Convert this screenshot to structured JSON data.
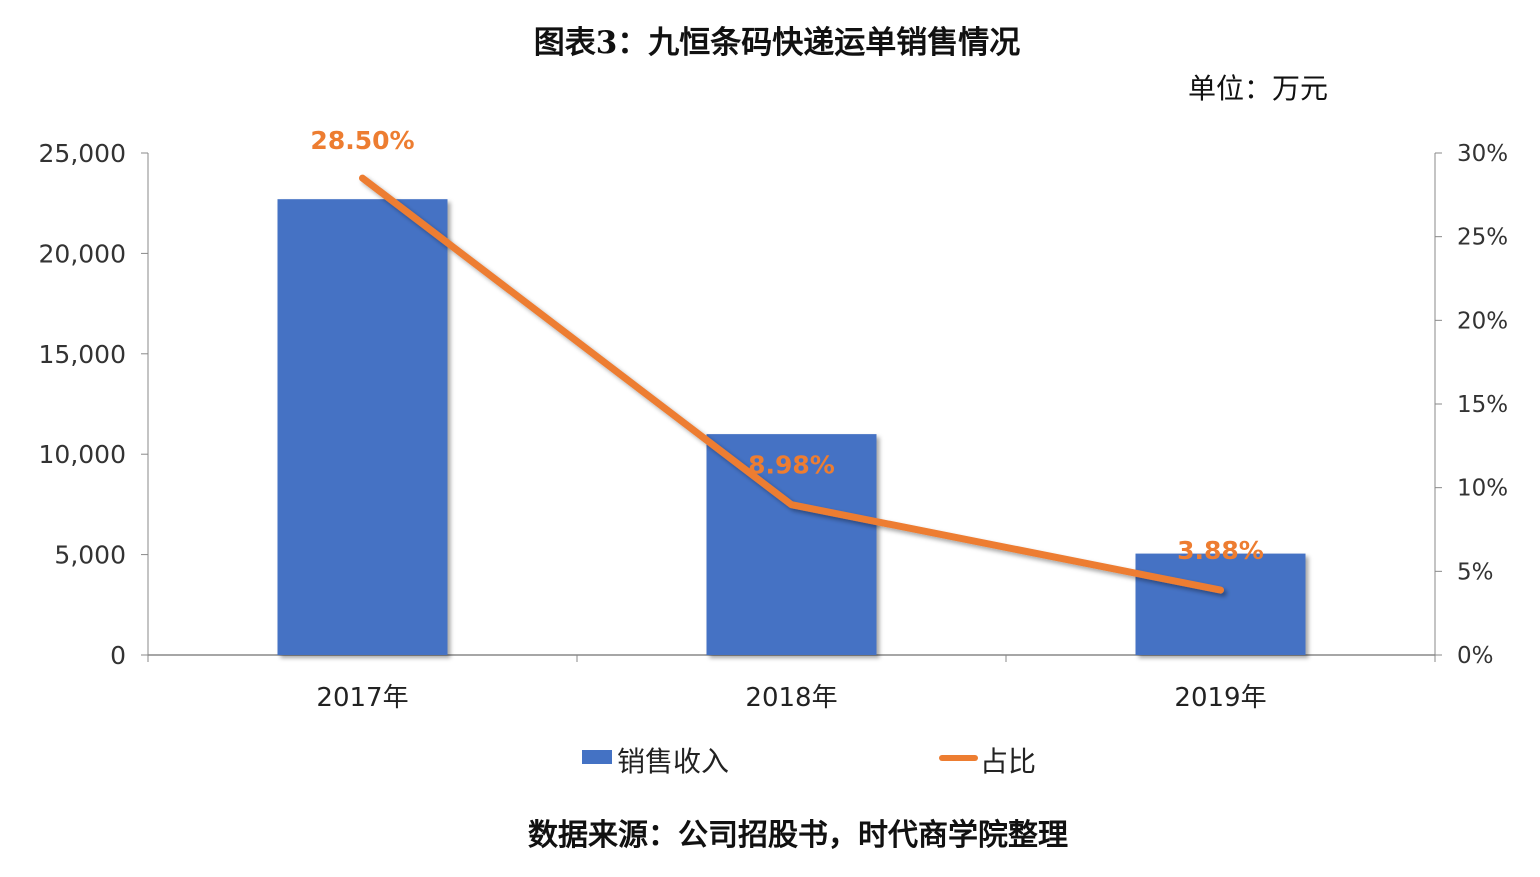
{
  "title": "图表3：九恒条码快递运单销售情况",
  "unit_label": "单位：万元",
  "source": "数据来源：公司招股书，时代商学院整理",
  "chart_data": {
    "type": "bar",
    "categories": [
      "2017年",
      "2018年",
      "2019年"
    ],
    "series": [
      {
        "name": "销售收入",
        "type": "bar",
        "axis": "left",
        "color": "#4472C4",
        "values": [
          22700,
          11000,
          5050
        ]
      },
      {
        "name": "占比",
        "type": "line",
        "axis": "right",
        "color": "#ED7D31",
        "values": [
          28.5,
          8.98,
          3.88
        ],
        "data_labels": [
          "28.50%",
          "8.98%",
          "3.88%"
        ]
      }
    ],
    "y_left": {
      "ylim": [
        0,
        25000
      ],
      "ticks": [
        "0",
        "5,000",
        "10,000",
        "15,000",
        "20,000",
        "25,000"
      ],
      "tick_values": [
        0,
        5000,
        10000,
        15000,
        20000,
        25000
      ]
    },
    "y_right": {
      "ylim": [
        0,
        30
      ],
      "ticks": [
        "0%",
        "5%",
        "10%",
        "15%",
        "20%",
        "25%",
        "30%"
      ],
      "tick_values": [
        0,
        5,
        10,
        15,
        20,
        25,
        30
      ]
    },
    "legend": {
      "position": "bottom",
      "entries": [
        "销售收入",
        "占比"
      ]
    },
    "grid": false
  }
}
